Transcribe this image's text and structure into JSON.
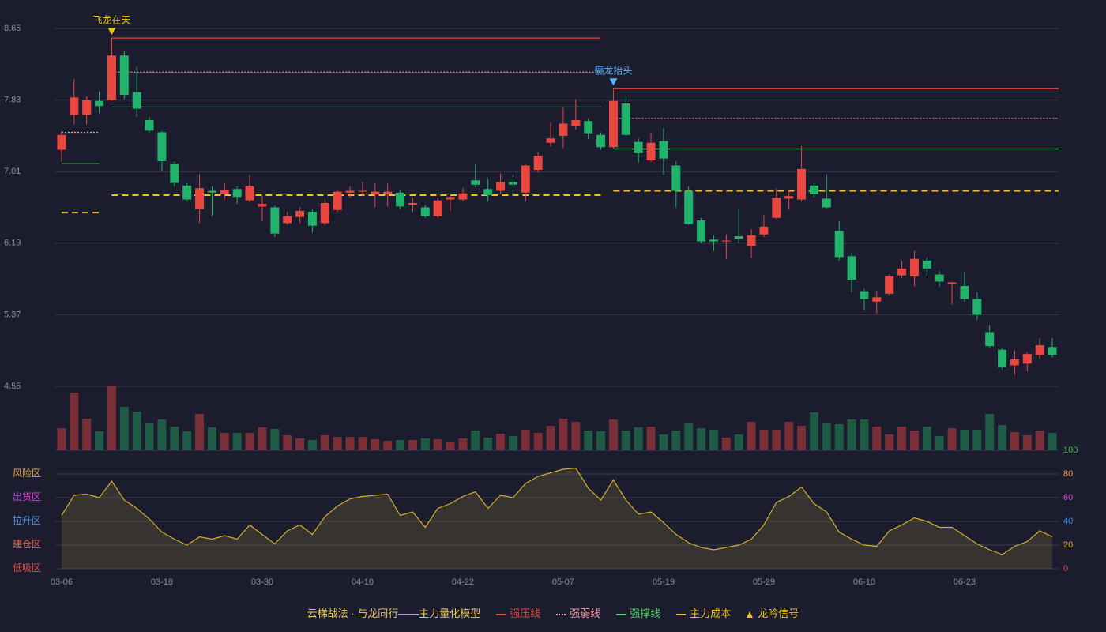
{
  "legend_title": "云梯战法 · 与龙同行——主力量化模型",
  "chart_data": [
    {
      "type": "candlestick",
      "ylim": [
        4.55,
        8.65
      ],
      "yticks": [
        8.65,
        7.83,
        7.01,
        6.19,
        5.37,
        4.55
      ],
      "grid": true,
      "up_color": "#e8483f",
      "down_color": "#21b36b",
      "open": [
        7.26,
        7.66,
        7.66,
        7.82,
        7.83,
        8.34,
        7.92,
        7.6,
        7.46,
        7.1,
        6.85,
        6.58,
        6.79,
        6.75,
        6.81,
        6.68,
        6.61,
        6.6,
        6.42,
        6.49,
        6.55,
        6.42,
        6.57,
        6.77,
        6.78,
        6.75,
        6.75,
        6.77,
        6.63,
        6.6,
        6.5,
        6.69,
        6.69,
        6.91,
        6.81,
        6.79,
        6.89,
        6.77,
        7.03,
        7.34,
        7.42,
        7.53,
        7.59,
        7.43,
        7.29,
        7.79,
        7.35,
        7.14,
        7.36,
        7.08,
        6.79,
        6.45,
        6.23,
        6.21,
        6.27,
        6.16,
        6.29,
        6.48,
        6.7,
        6.69,
        6.85,
        6.7,
        6.33,
        6.04,
        5.64,
        5.52,
        5.61,
        5.82,
        5.81,
        5.99,
        5.83,
        5.72,
        5.7,
        5.55,
        5.17,
        4.97,
        4.79,
        4.81,
        4.91,
        5.0
      ],
      "high": [
        7.48,
        8.07,
        7.87,
        7.93,
        8.54,
        8.4,
        8.21,
        7.64,
        7.48,
        7.12,
        6.88,
        6.98,
        6.84,
        6.88,
        6.84,
        6.97,
        6.73,
        6.62,
        6.55,
        6.6,
        6.58,
        6.69,
        6.8,
        6.84,
        6.89,
        6.88,
        6.87,
        6.8,
        6.71,
        6.63,
        6.71,
        6.76,
        6.82,
        7.09,
        6.93,
        6.99,
        6.97,
        7.09,
        7.23,
        7.57,
        7.74,
        7.84,
        7.62,
        7.46,
        7.96,
        7.87,
        7.39,
        7.46,
        7.51,
        7.13,
        6.84,
        6.48,
        6.28,
        6.29,
        6.59,
        6.35,
        6.51,
        6.82,
        6.8,
        7.3,
        6.88,
        6.98,
        6.44,
        6.08,
        5.67,
        5.64,
        5.83,
        5.99,
        6.1,
        6.03,
        5.87,
        5.75,
        5.86,
        5.63,
        5.25,
        4.99,
        4.96,
        4.94,
        5.1,
        5.1
      ],
      "low": [
        7.12,
        7.55,
        7.55,
        7.68,
        7.82,
        7.84,
        7.64,
        7.46,
        7.02,
        6.84,
        6.67,
        6.42,
        6.5,
        6.69,
        6.64,
        6.66,
        6.44,
        6.26,
        6.4,
        6.42,
        6.31,
        6.4,
        6.55,
        6.71,
        6.73,
        6.6,
        6.61,
        6.58,
        6.55,
        6.48,
        6.48,
        6.56,
        6.67,
        6.83,
        6.67,
        6.76,
        6.74,
        6.67,
        7.0,
        7.3,
        7.28,
        7.49,
        7.38,
        7.26,
        7.27,
        7.42,
        7.11,
        7.12,
        6.97,
        6.6,
        6.4,
        6.19,
        6.1,
        6.01,
        6.19,
        6.02,
        6.26,
        6.46,
        6.58,
        6.67,
        6.72,
        6.59,
        5.99,
        5.63,
        5.42,
        5.38,
        5.59,
        5.79,
        5.7,
        5.81,
        5.69,
        5.49,
        5.52,
        5.31,
        4.99,
        4.75,
        4.68,
        4.72,
        4.86,
        4.88
      ],
      "close": [
        7.43,
        7.86,
        7.83,
        7.76,
        8.34,
        7.89,
        7.73,
        7.48,
        7.13,
        6.88,
        6.69,
        6.82,
        6.77,
        6.8,
        6.72,
        6.84,
        6.64,
        6.3,
        6.5,
        6.56,
        6.39,
        6.65,
        6.78,
        6.79,
        6.79,
        6.78,
        6.78,
        6.61,
        6.65,
        6.5,
        6.68,
        6.72,
        6.76,
        6.86,
        6.74,
        6.89,
        6.86,
        7.08,
        7.19,
        7.39,
        7.56,
        7.6,
        7.45,
        7.29,
        7.82,
        7.43,
        7.22,
        7.34,
        7.16,
        6.79,
        6.41,
        6.21,
        6.21,
        6.22,
        6.24,
        6.28,
        6.38,
        6.71,
        6.73,
        7.04,
        6.75,
        6.6,
        6.03,
        5.77,
        5.55,
        5.57,
        5.81,
        5.9,
        6.01,
        5.9,
        5.75,
        5.74,
        5.55,
        5.37,
        5.01,
        4.77,
        4.86,
        4.92,
        5.02,
        4.91
      ],
      "series": [
        {
          "name": "强压线",
          "color": "#e8483f",
          "style": "solid",
          "values": [
            null,
            null,
            null,
            null,
            8.54,
            8.54,
            8.54,
            8.54,
            8.54,
            8.54,
            8.54,
            8.54,
            8.54,
            8.54,
            8.54,
            8.54,
            8.54,
            8.54,
            8.54,
            8.54,
            8.54,
            8.54,
            8.54,
            8.54,
            8.54,
            8.54,
            8.54,
            8.54,
            8.54,
            8.54,
            8.54,
            8.54,
            8.54,
            8.54,
            8.54,
            8.54,
            8.54,
            8.54,
            8.54,
            8.54,
            8.54,
            8.54,
            8.54,
            8.54,
            7.96,
            7.96,
            7.96,
            7.96,
            7.96,
            7.96,
            7.96,
            7.96,
            7.96,
            7.96,
            7.96,
            7.96,
            7.96,
            7.96,
            7.96,
            7.96,
            7.96,
            7.96,
            7.96,
            7.96,
            7.96,
            7.96,
            7.96,
            7.96,
            7.96,
            7.96,
            7.96,
            7.96,
            7.96,
            7.96,
            7.96,
            7.96,
            7.96,
            7.96,
            7.96,
            7.96
          ]
        },
        {
          "name": "强弱线",
          "color": "#f49aa6",
          "style": "dotted",
          "values": [
            7.46,
            7.46,
            7.46,
            7.46,
            8.15,
            8.15,
            8.15,
            8.15,
            8.15,
            8.15,
            8.15,
            8.15,
            8.15,
            8.15,
            8.15,
            8.15,
            8.15,
            8.15,
            8.15,
            8.15,
            8.15,
            8.15,
            8.15,
            8.15,
            8.15,
            8.15,
            8.15,
            8.15,
            8.15,
            8.15,
            8.15,
            8.15,
            8.15,
            8.15,
            8.15,
            8.15,
            8.15,
            8.15,
            8.15,
            8.15,
            8.15,
            8.15,
            8.15,
            8.15,
            7.62,
            7.62,
            7.62,
            7.62,
            7.62,
            7.62,
            7.62,
            7.62,
            7.62,
            7.62,
            7.62,
            7.62,
            7.62,
            7.62,
            7.62,
            7.62,
            7.62,
            7.62,
            7.62,
            7.62,
            7.62,
            7.62,
            7.62,
            7.62,
            7.62,
            7.62,
            7.62,
            7.62,
            7.62,
            7.62,
            7.62,
            7.62,
            7.62,
            7.62,
            7.62,
            7.62
          ]
        },
        {
          "name": "强撑线",
          "color": "#4fd16a",
          "style": "solid",
          "values": [
            7.1,
            7.1,
            7.1,
            7.1,
            7.75,
            7.75,
            7.75,
            7.75,
            7.75,
            7.75,
            7.75,
            7.75,
            7.75,
            7.75,
            7.75,
            7.75,
            7.75,
            7.75,
            7.75,
            7.75,
            7.75,
            7.75,
            7.75,
            7.75,
            7.75,
            7.75,
            7.75,
            7.75,
            7.75,
            7.75,
            7.75,
            7.75,
            7.75,
            7.75,
            7.75,
            7.75,
            7.75,
            7.75,
            7.75,
            7.75,
            7.75,
            7.75,
            7.75,
            7.75,
            7.27,
            7.27,
            7.27,
            7.27,
            7.27,
            7.27,
            7.27,
            7.27,
            7.27,
            7.27,
            7.27,
            7.27,
            7.27,
            7.27,
            7.27,
            7.27,
            7.27,
            7.27,
            7.27,
            7.27,
            7.27,
            7.27,
            7.27,
            7.27,
            7.27,
            7.27,
            7.27,
            7.27,
            7.27,
            7.27,
            7.27,
            7.27,
            7.27,
            7.27,
            7.27,
            7.27
          ]
        },
        {
          "name": "主力成本",
          "color": "#f0c419",
          "style": "dashed",
          "values": [
            6.54,
            6.54,
            6.54,
            6.54,
            6.74,
            6.74,
            6.74,
            6.74,
            6.74,
            6.74,
            6.74,
            6.74,
            6.74,
            6.74,
            6.74,
            6.74,
            6.74,
            6.74,
            6.74,
            6.74,
            6.74,
            6.74,
            6.74,
            6.74,
            6.74,
            6.74,
            6.74,
            6.74,
            6.74,
            6.74,
            6.74,
            6.74,
            6.74,
            6.74,
            6.74,
            6.74,
            6.74,
            6.74,
            6.74,
            6.74,
            6.74,
            6.74,
            6.74,
            6.74,
            6.79,
            6.79,
            6.79,
            6.79,
            6.79,
            6.79,
            6.79,
            6.79,
            6.79,
            6.79,
            6.79,
            6.79,
            6.79,
            6.79,
            6.79,
            6.79,
            6.79,
            6.79,
            6.79,
            6.79,
            6.79,
            6.79,
            6.79,
            6.79,
            6.79,
            6.79,
            6.79,
            6.79,
            6.79,
            6.79,
            6.79,
            6.79,
            6.79,
            6.79,
            6.79,
            6.79
          ]
        }
      ],
      "signal_name": "龙吟信号",
      "signal_color": "#f0c419",
      "signals": [
        null,
        null,
        null,
        null,
        {
          "label": "飞龙在天",
          "color": "#f0c419"
        },
        null,
        null,
        null,
        null,
        null,
        null,
        null,
        null,
        null,
        null,
        null,
        null,
        null,
        null,
        null,
        null,
        null,
        null,
        null,
        null,
        null,
        null,
        null,
        null,
        null,
        null,
        null,
        null,
        null,
        null,
        null,
        null,
        null,
        null,
        null,
        null,
        null,
        null,
        null,
        {
          "label": "骊龙抬头",
          "color": "#5ab4f5"
        },
        null,
        null,
        null,
        null,
        null,
        null,
        null,
        null,
        null,
        null,
        null,
        null,
        null,
        null,
        null,
        null,
        null,
        null,
        null,
        null,
        null,
        null,
        null,
        null,
        null,
        null,
        null,
        null,
        null,
        null,
        null,
        null,
        null,
        null,
        null
      ]
    },
    {
      "type": "volume",
      "up_color": "#7a2f38",
      "down_color": "#1f5a45",
      "values": [
        28,
        73,
        40,
        24,
        82,
        55,
        49,
        34,
        39,
        30,
        24,
        46,
        29,
        22,
        22,
        22,
        29,
        27,
        19,
        15,
        13,
        19,
        17,
        17,
        17,
        14,
        12,
        13,
        13,
        15,
        14,
        10,
        15,
        25,
        16,
        21,
        18,
        26,
        22,
        31,
        40,
        36,
        25,
        24,
        39,
        25,
        29,
        30,
        20,
        25,
        34,
        28,
        26,
        16,
        20,
        36,
        26,
        26,
        36,
        31,
        48,
        34,
        33,
        39,
        39,
        30,
        20,
        30,
        25,
        30,
        18,
        28,
        26,
        26,
        46,
        32,
        23,
        19,
        25,
        22
      ]
    },
    {
      "type": "area",
      "color": "#d4b02a",
      "fill": "rgba(110,95,55,0.35)",
      "ylim": [
        0,
        100
      ],
      "grid": true,
      "categories": [
        "03-06",
        null,
        null,
        null,
        null,
        null,
        null,
        null,
        "03-18",
        null,
        null,
        null,
        null,
        null,
        null,
        null,
        "03-30",
        null,
        null,
        null,
        null,
        null,
        null,
        null,
        "04-10",
        null,
        null,
        null,
        null,
        null,
        null,
        null,
        "04-22",
        null,
        null,
        null,
        null,
        null,
        null,
        null,
        "05-07",
        null,
        null,
        null,
        null,
        null,
        null,
        null,
        "05-19",
        null,
        null,
        null,
        null,
        null,
        null,
        null,
        "05-29",
        null,
        null,
        null,
        null,
        null,
        null,
        null,
        "06-10",
        null,
        null,
        null,
        null,
        null,
        null,
        null,
        "06-23",
        null,
        null,
        null,
        null,
        null,
        null,
        null
      ],
      "values": [
        45,
        62,
        63,
        60,
        74,
        58,
        51,
        42,
        31,
        25,
        20,
        27,
        25,
        28,
        25,
        37,
        29,
        21,
        32,
        37,
        29,
        44,
        53,
        59,
        61,
        62,
        63,
        45,
        48,
        35,
        51,
        55,
        61,
        65,
        51,
        62,
        60,
        72,
        78,
        81,
        84,
        85,
        68,
        58,
        75,
        58,
        46,
        48,
        39,
        29,
        22,
        18,
        16,
        18,
        20,
        25,
        37,
        56,
        61,
        69,
        55,
        48,
        31,
        25,
        20,
        19,
        32,
        37,
        43,
        40,
        35,
        35,
        28,
        21,
        16,
        12,
        19,
        23,
        32,
        27
      ],
      "yticks": [
        {
          "value": 80,
          "label": "风险区"
        },
        {
          "value": 60,
          "label": "出货区"
        },
        {
          "value": 40,
          "label": "拉升区"
        },
        {
          "value": 20,
          "label": "建仓区"
        },
        {
          "value": 0,
          "label": "低吸区"
        }
      ],
      "ytick_colors": [
        "#e8a33d",
        "#d93fd9",
        "#4a8fe8",
        "#e8603d",
        "#e04848"
      ],
      "y2ticks": [
        100,
        80,
        60,
        40,
        20,
        0
      ],
      "y2tick_colors": [
        "#3ec24a",
        "#e8a33d",
        "#d93fd9",
        "#4a8fe8",
        "#e8a33d",
        "#e04848"
      ]
    }
  ]
}
